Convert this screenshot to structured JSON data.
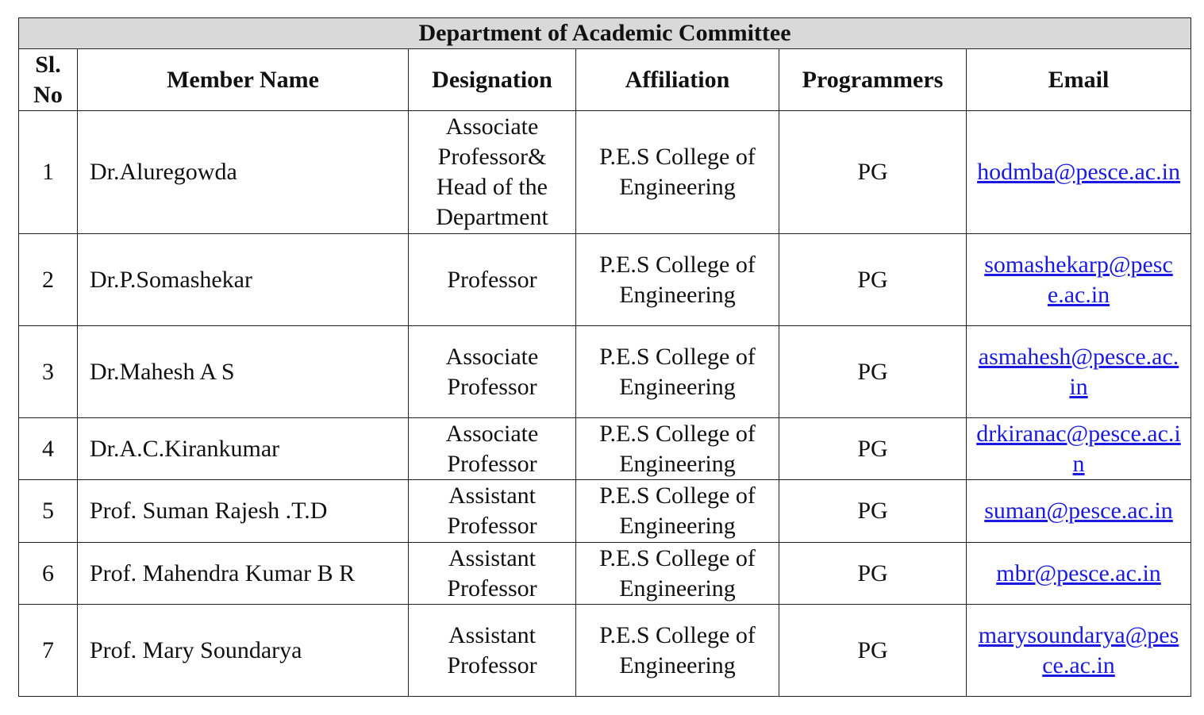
{
  "title": "Department of Academic Committee",
  "headers": [
    "Sl. No",
    "Member Name",
    "Designation",
    "Affiliation",
    "Programmers",
    "Email"
  ],
  "rows": [
    {
      "sl": "1",
      "name": "Dr.Aluregowda",
      "designation": "Associate Professor& Head of the Department",
      "affiliation": "P.E.S College of Engineering",
      "programme": "PG",
      "email": "hodmba@pesce.ac.in"
    },
    {
      "sl": "2",
      "name": "Dr.P.Somashekar",
      "designation": "Professor",
      "affiliation": "P.E.S College of Engineering",
      "programme": "PG",
      "email": "somashekarp@pesce.ac.in"
    },
    {
      "sl": "3",
      "name": "Dr.Mahesh A S",
      "designation": "Associate Professor",
      "affiliation": "P.E.S College of Engineering",
      "programme": "PG",
      "email": "asmahesh@pesce.ac.in"
    },
    {
      "sl": "4",
      "name": "Dr.A.C.Kirankumar",
      "designation": "Associate Professor",
      "affiliation": "P.E.S College of Engineering",
      "programme": "PG",
      "email": "drkiranac@pesce.ac.in"
    },
    {
      "sl": "5",
      "name": "Prof. Suman Rajesh .T.D",
      "designation": "Assistant Professor",
      "affiliation": "P.E.S College of Engineering",
      "programme": "PG",
      "email": "suman@pesce.ac.in"
    },
    {
      "sl": "6",
      "name": "Prof. Mahendra Kumar B R",
      "designation": "Assistant Professor",
      "affiliation": "P.E.S College of Engineering",
      "programme": "PG",
      "email": "mbr@pesce.ac.in"
    },
    {
      "sl": "7",
      "name": "Prof. Mary Soundarya",
      "designation": "Assistant Professor",
      "affiliation": "P.E.S College of Engineering",
      "programme": "PG",
      "email": "marysoundarya@pesce.ac.in"
    }
  ],
  "colors": {
    "title_bg": "#d9d9d9",
    "link": "#1a1ae0"
  }
}
